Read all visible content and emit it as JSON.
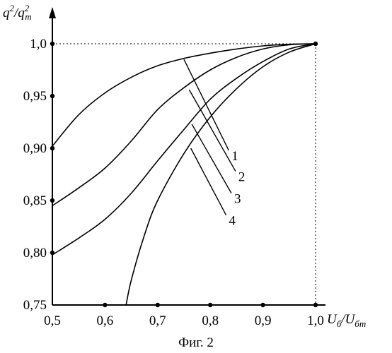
{
  "chart_data": {
    "type": "line",
    "title": "",
    "caption": "Фиг. 2",
    "ylabel": {
      "base1": "q",
      "sup1": "2",
      "sep": "/",
      "base2": "q",
      "sup2": "2",
      "sub2": "т"
    },
    "xlabel": {
      "base1": "U",
      "sub1": "б",
      "sep": "/",
      "base2": "U",
      "sub2": "бт"
    },
    "xlim": [
      0.5,
      1.0
    ],
    "ylim": [
      0.75,
      1.0
    ],
    "x_ticks": [
      "0,5",
      "0,6",
      "0,7",
      "0,8",
      "0,9",
      "1,0"
    ],
    "y_ticks": [
      "0,75",
      "0,80",
      "0,85",
      "0,90",
      "0,95",
      "1,0"
    ],
    "x_tick_values": [
      0.5,
      0.6,
      0.7,
      0.8,
      0.9,
      1.0
    ],
    "y_tick_values": [
      0.75,
      0.8,
      0.85,
      0.9,
      0.95,
      1.0
    ],
    "reference_lines": {
      "y": 1.0,
      "x": 1.0,
      "style": "dotted"
    },
    "series": [
      {
        "label": "1",
        "points": [
          [
            0.5,
            0.902
          ],
          [
            0.55,
            0.932
          ],
          [
            0.6,
            0.953
          ],
          [
            0.65,
            0.968
          ],
          [
            0.7,
            0.979
          ],
          [
            0.75,
            0.986
          ],
          [
            0.8,
            0.991
          ],
          [
            0.85,
            0.995
          ],
          [
            0.9,
            0.998
          ],
          [
            0.95,
            0.9995
          ],
          [
            1.0,
            1.0
          ]
        ],
        "leader_from": [
          0.75,
          0.985
        ],
        "leader_to": [
          0.835,
          0.898
        ]
      },
      {
        "label": "2",
        "points": [
          [
            0.5,
            0.845
          ],
          [
            0.55,
            0.862
          ],
          [
            0.6,
            0.881
          ],
          [
            0.65,
            0.907
          ],
          [
            0.7,
            0.937
          ],
          [
            0.75,
            0.958
          ],
          [
            0.8,
            0.975
          ],
          [
            0.85,
            0.987
          ],
          [
            0.9,
            0.995
          ],
          [
            0.95,
            0.999
          ],
          [
            1.0,
            1.0
          ]
        ],
        "leader_from": [
          0.76,
          0.956
        ],
        "leader_to": [
          0.848,
          0.878
        ]
      },
      {
        "label": "3",
        "points": [
          [
            0.5,
            0.798
          ],
          [
            0.55,
            0.814
          ],
          [
            0.6,
            0.832
          ],
          [
            0.65,
            0.857
          ],
          [
            0.7,
            0.888
          ],
          [
            0.75,
            0.918
          ],
          [
            0.8,
            0.947
          ],
          [
            0.85,
            0.967
          ],
          [
            0.9,
            0.983
          ],
          [
            0.95,
            0.995
          ],
          [
            1.0,
            1.0
          ]
        ],
        "leader_from": [
          0.765,
          0.923
        ],
        "leader_to": [
          0.84,
          0.857
        ]
      },
      {
        "label": "4",
        "points": [
          [
            0.64,
            0.75
          ],
          [
            0.65,
            0.774
          ],
          [
            0.675,
            0.817
          ],
          [
            0.7,
            0.85
          ],
          [
            0.75,
            0.895
          ],
          [
            0.8,
            0.93
          ],
          [
            0.85,
            0.957
          ],
          [
            0.9,
            0.978
          ],
          [
            0.95,
            0.992
          ],
          [
            1.0,
            1.0
          ]
        ],
        "leader_from": [
          0.763,
          0.9
        ],
        "leader_to": [
          0.83,
          0.836
        ]
      }
    ],
    "grid": false,
    "legend": "none"
  }
}
